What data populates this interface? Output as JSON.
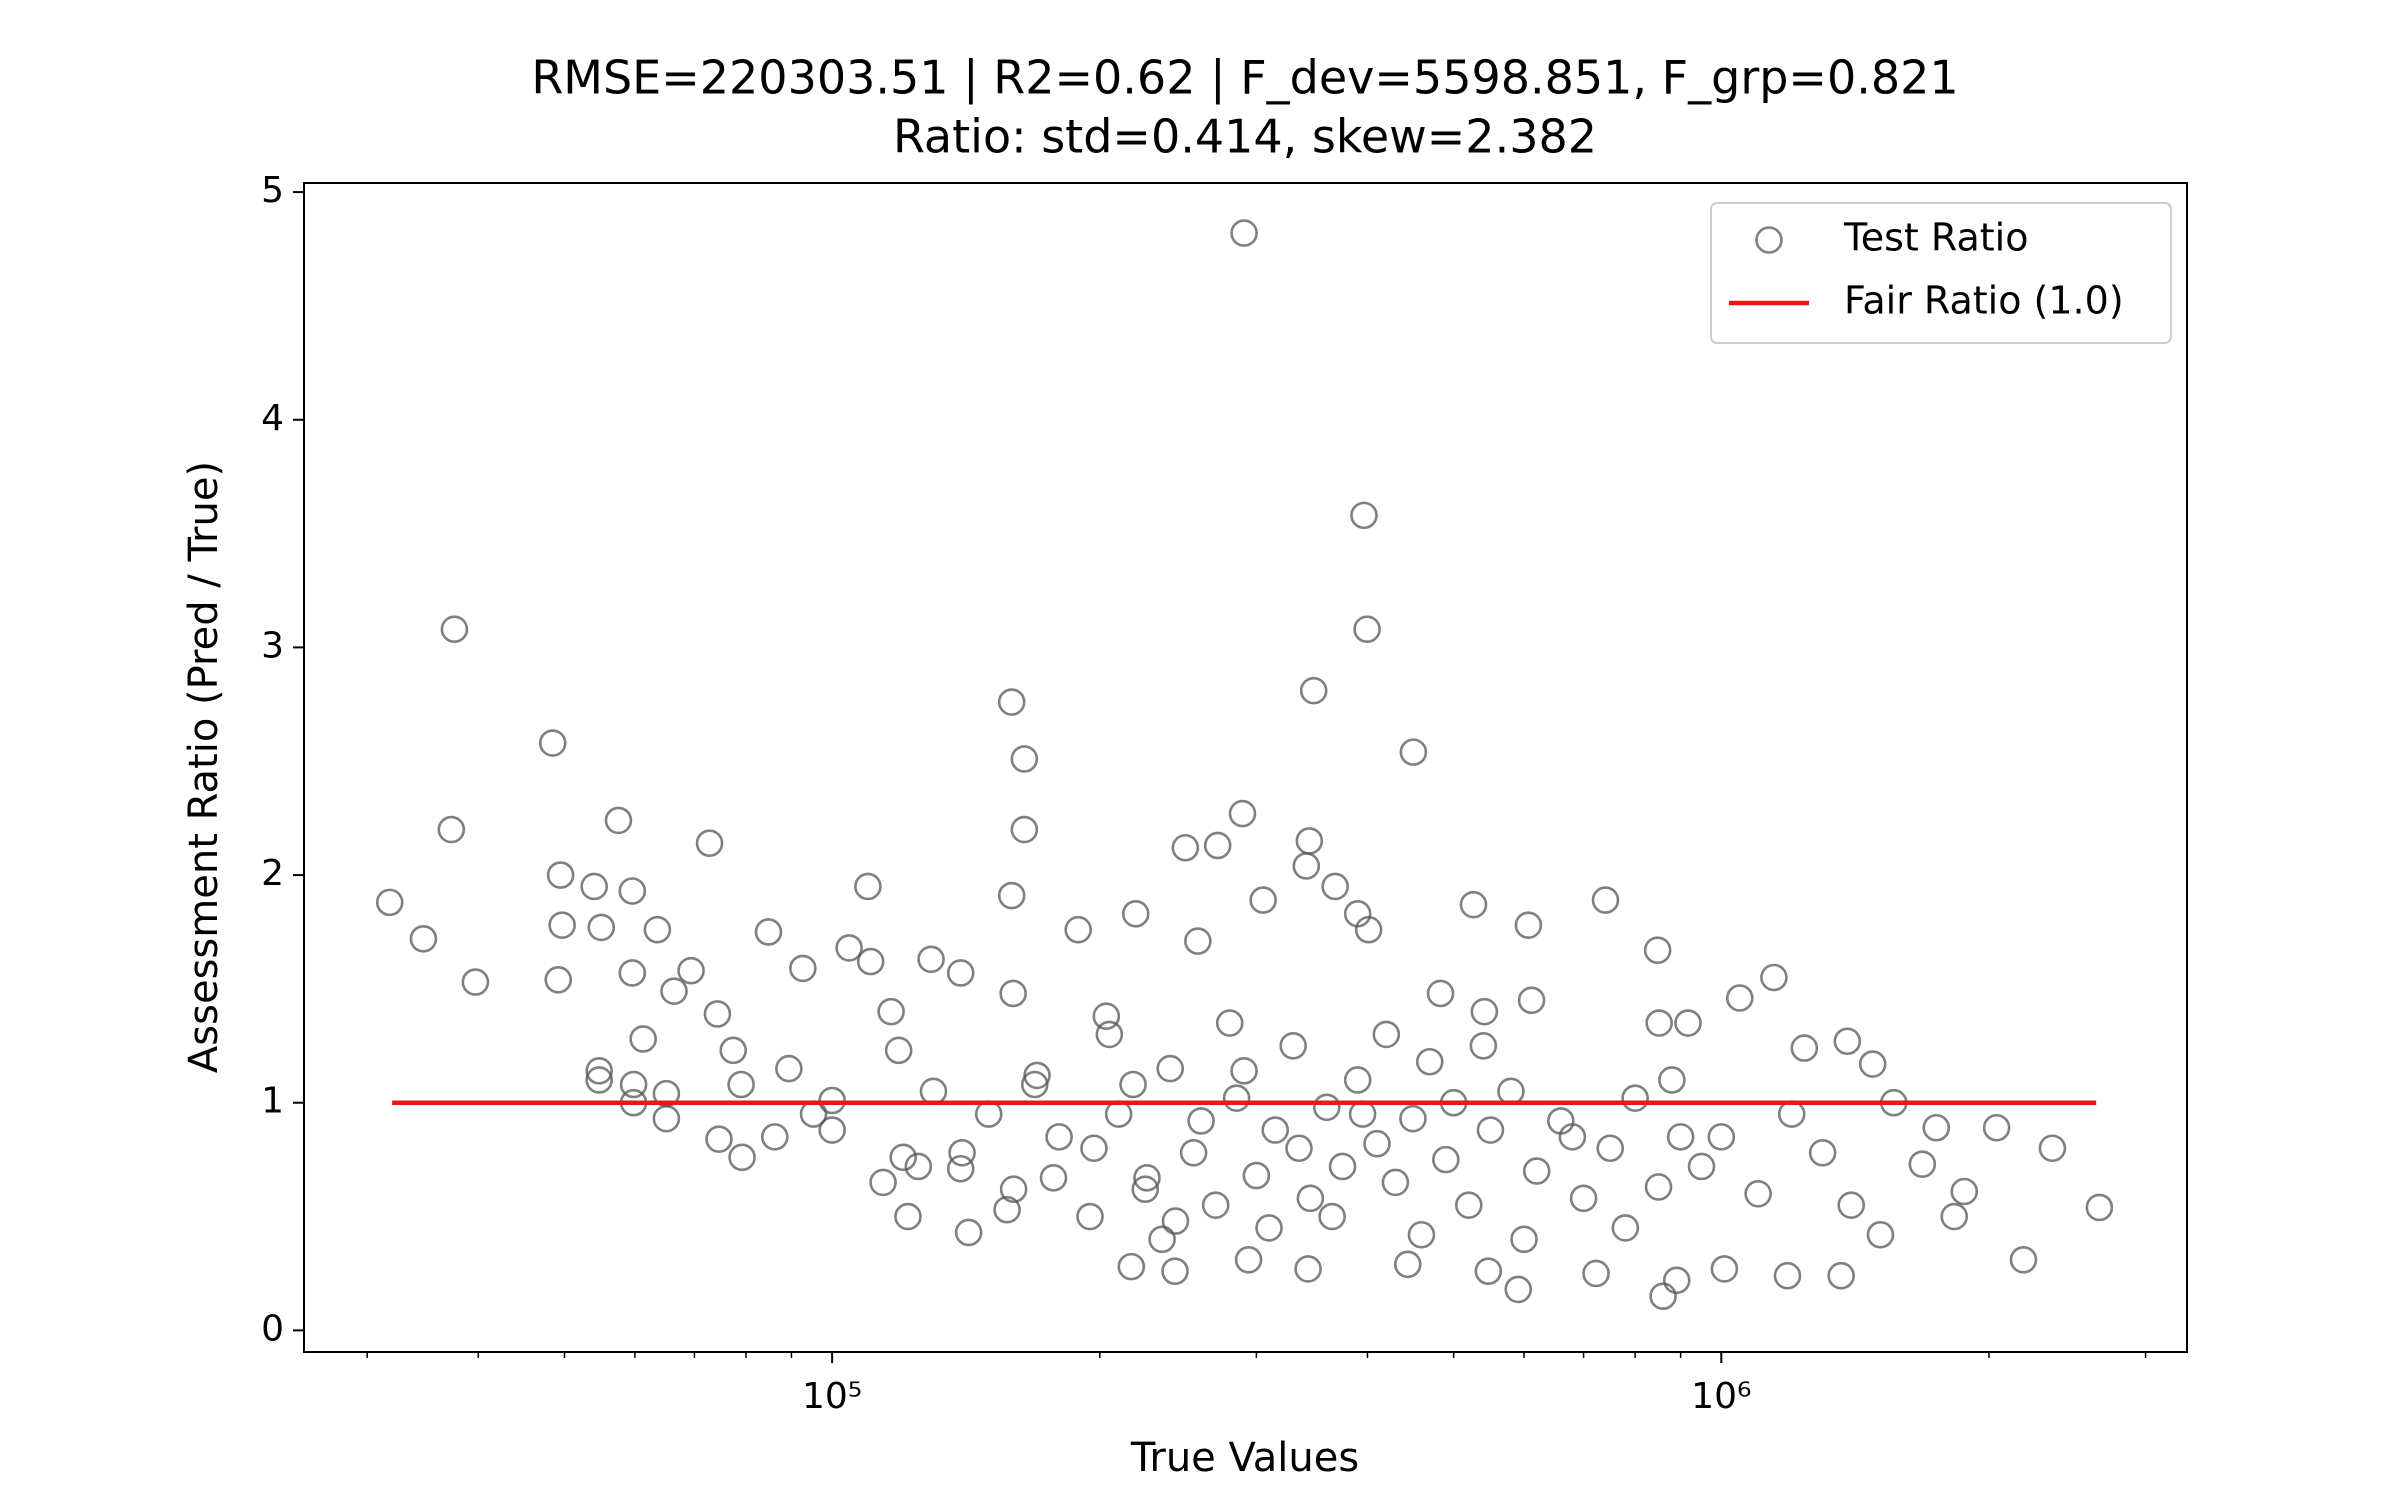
{
  "chart_data": {
    "type": "scatter",
    "title": [
      "RMSE=220303.51 | R2=0.62 | F_dev=5598.851, F_grp=0.821",
      "Ratio: std=0.414, skew=2.382"
    ],
    "x_label": "True Values",
    "y_label": "Assessment Ratio (Pred / True)",
    "xscale": "log",
    "xlim": [
      25470,
      3340000
    ],
    "ylim": [
      -0.095,
      5.04
    ],
    "xticks": [
      {
        "value": 100000,
        "label": "10⁵"
      },
      {
        "value": 1000000,
        "label": "10⁶"
      }
    ],
    "xminorticks": [
      30000,
      40000,
      50000,
      60000,
      70000,
      80000,
      90000,
      200000,
      300000,
      400000,
      500000,
      600000,
      700000,
      800000,
      900000,
      2000000,
      3000000
    ],
    "yticks": [
      0,
      1,
      2,
      3,
      4,
      5
    ],
    "legend": "upper right",
    "x": [
      31800,
      34700,
      37600,
      37300,
      39700,
      48500,
      49500,
      49700,
      49200,
      54000,
      55000,
      57500,
      59600,
      59600,
      54700,
      54700,
      59800,
      59800,
      61300,
      63600,
      65100,
      65100,
      66400,
      72800,
      69400,
      74300,
      74600,
      77400,
      79200,
      79000,
      84800,
      86200,
      89400,
      92700,
      95300,
      100000,
      100000,
      104500,
      109700,
      110500,
      116500,
      118800,
      114100,
      120200,
      121700,
      129200,
      139500,
      139500,
      142400,
      159200,
      164500,
      164500,
      159200,
      159800,
      169000,
      157300,
      177400,
      189100,
      197000,
      203400,
      219500,
      218000,
      226000,
      243300,
      249600,
      271400,
      257800,
      289400,
      290600,
      290600,
      305300,
      341400,
      344100,
      348000,
      367900,
      396400,
      399600,
      390000,
      401200,
      450500,
      483300,
      526400,
      541400,
      606800,
      611800,
      740900,
      848000,
      851400,
      917400,
      1049000,
      1146000,
      1240000,
      1386000,
      1480000,
      1563000,
      1683000,
      1745000,
      1876000,
      2040000,
      2187000,
      2357000,
      2662000,
      1828000,
      1510000,
      1364000,
      1187000,
      1008000,
      860000,
      891000,
      723000,
      591000,
      547000,
      444000,
      343000,
      294000,
      243000,
      217000,
      210000,
      225000,
      240000,
      255000,
      270000,
      285000,
      300000,
      315000,
      330000,
      345000,
      360000,
      375000,
      390000,
      410000,
      430000,
      450000,
      470000,
      490000,
      520000,
      550000,
      580000,
      620000,
      660000,
      700000,
      750000,
      800000,
      850000,
      900000,
      950000,
      1100000,
      1200000,
      1300000,
      1400000,
      180000,
      170000,
      160000,
      150000,
      140000,
      130000,
      125000,
      195000,
      205000,
      235000,
      260000,
      280000,
      310000,
      335000,
      365000,
      395000,
      420000,
      460000,
      500000,
      540000,
      600000,
      680000,
      780000,
      880000,
      1000000
    ],
    "series": [
      {
        "name": "Test Ratio",
        "type": "scatter",
        "color": "#555555",
        "values": [
          1.88,
          1.72,
          3.08,
          2.2,
          1.53,
          2.58,
          2.0,
          1.78,
          1.54,
          1.95,
          1.77,
          2.24,
          1.93,
          1.57,
          1.14,
          1.1,
          1.08,
          1.0,
          1.28,
          1.76,
          0.93,
          1.04,
          1.49,
          2.14,
          1.58,
          1.39,
          0.84,
          1.23,
          0.76,
          1.08,
          1.75,
          0.85,
          1.15,
          1.59,
          0.95,
          0.88,
          1.01,
          1.68,
          1.95,
          1.62,
          1.4,
          1.23,
          0.65,
          0.76,
          0.5,
          1.63,
          0.71,
          1.57,
          0.43,
          2.76,
          2.51,
          2.2,
          1.91,
          1.48,
          1.08,
          0.53,
          0.67,
          1.76,
          0.8,
          1.38,
          1.83,
          1.08,
          0.67,
          0.48,
          2.12,
          2.13,
          1.71,
          2.27,
          4.82,
          1.14,
          1.89,
          2.04,
          2.15,
          2.81,
          1.95,
          3.58,
          3.08,
          1.83,
          1.76,
          2.54,
          1.48,
          1.87,
          1.4,
          1.78,
          1.45,
          1.89,
          1.67,
          1.35,
          1.35,
          1.46,
          1.55,
          1.24,
          1.27,
          1.17,
          1.0,
          0.73,
          0.89,
          0.61,
          0.89,
          0.31,
          0.8,
          0.54,
          0.5,
          0.42,
          0.24,
          0.24,
          0.27,
          0.15,
          0.22,
          0.25,
          0.18,
          0.26,
          0.29,
          0.27,
          0.31,
          0.26,
          0.28,
          0.95,
          0.62,
          1.15,
          0.78,
          0.55,
          1.02,
          0.68,
          0.88,
          1.25,
          0.58,
          0.98,
          0.72,
          1.1,
          0.82,
          0.65,
          0.93,
          1.18,
          0.75,
          0.55,
          0.88,
          1.05,
          0.7,
          0.92,
          0.58,
          0.8,
          1.02,
          0.63,
          0.85,
          0.72,
          0.6,
          0.95,
          0.78,
          0.55,
          0.85,
          1.12,
          0.62,
          0.95,
          0.78,
          1.05,
          0.72,
          0.5,
          1.3,
          0.4,
          0.92,
          1.35,
          0.45,
          0.8,
          0.5,
          0.95,
          1.3,
          0.42,
          1.0,
          1.25,
          0.4,
          0.85,
          0.45,
          1.1,
          0.85
        ]
      },
      {
        "name": "Fair Ratio (1.0)",
        "type": "line",
        "color": "#e31a1c",
        "x": [
          32000,
          2640000
        ],
        "values": [
          1,
          1
        ]
      }
    ]
  }
}
